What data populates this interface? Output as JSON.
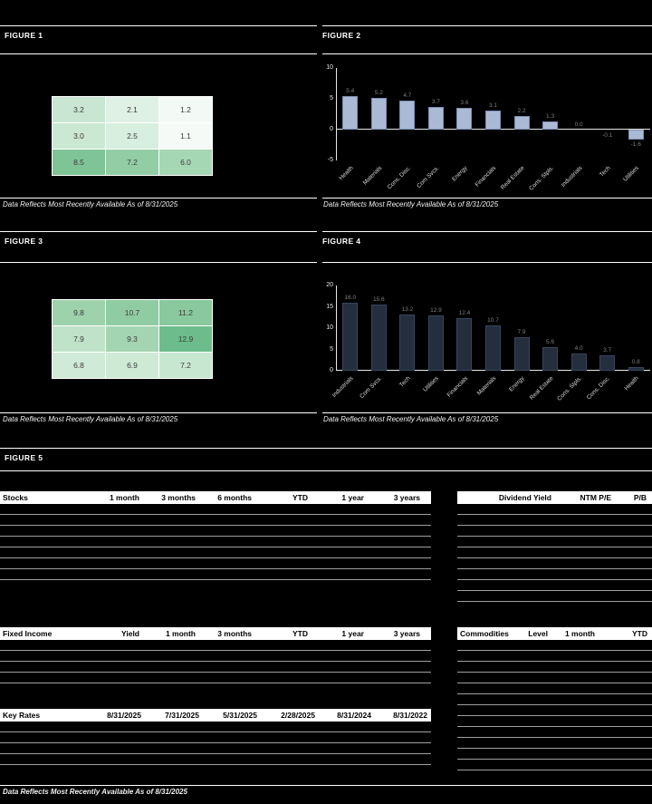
{
  "page": {
    "background": "#000000"
  },
  "figures": {
    "figure1": {
      "title": "FIGURE 1",
      "caption": "Data Reflects Most Recently Available As of 8/31/2025"
    },
    "figure2": {
      "title": "FIGURE 2",
      "caption": "Data Reflects Most Recently Available As of 8/31/2025"
    },
    "figure3": {
      "title": "FIGURE 3",
      "caption": "Data Reflects Most Recently Available As of 8/31/2025"
    },
    "figure4": {
      "title": "FIGURE 4",
      "caption": "Data Reflects Most Recently Available As of 8/31/2025"
    },
    "figure5": {
      "title": "FIGURE 5",
      "caption": "Data Reflects Most Recently Available As of 8/31/2025"
    }
  },
  "chart_data": [
    {
      "id": "figure1",
      "figure": "FIGURE 1",
      "type": "heatmap",
      "rows": [
        [
          3.2,
          2.1,
          1.2
        ],
        [
          3.0,
          2.5,
          1.1
        ],
        [
          8.5,
          7.2,
          6.0
        ]
      ],
      "cell_colors": [
        [
          "#c8e6d1",
          "#dff1e5",
          "#f3faf5"
        ],
        [
          "#cbe8d3",
          "#d8eede",
          "#f5faf6"
        ],
        [
          "#7fc497",
          "#92cda6",
          "#a6d7b5"
        ]
      ],
      "value_text_color": "#3c3c3c",
      "caption": "Data Reflects Most Recently Available As of 8/31/2025"
    },
    {
      "id": "figure2",
      "figure": "FIGURE 2",
      "type": "bar",
      "categories": [
        "Health",
        "Materials",
        "Cons. Disc.",
        "Com Svcs.",
        "Energy",
        "Financials",
        "Real Estate",
        "Cons. Stpls.",
        "Industrials",
        "Tech",
        "Utilities"
      ],
      "values": [
        5.4,
        5.2,
        4.7,
        3.7,
        3.6,
        3.1,
        2.2,
        1.3,
        0.0,
        -0.1,
        -1.6
      ],
      "ylim": [
        -5,
        10
      ],
      "yticks": [
        10,
        5,
        0,
        -5
      ],
      "grid": false,
      "bar_color": "#abbad4",
      "bar_edge_color": "#7d8fb4",
      "value_label_color": "#7f7f7f",
      "caption": "Data Reflects Most Recently Available As of 8/31/2025"
    },
    {
      "id": "figure3",
      "figure": "FIGURE 3",
      "type": "heatmap",
      "rows": [
        [
          9.8,
          10.7,
          11.2
        ],
        [
          7.9,
          9.3,
          12.9
        ],
        [
          6.8,
          6.9,
          7.2
        ]
      ],
      "cell_colors": [
        [
          "#9dd2ad",
          "#90cca3",
          "#89c99d"
        ],
        [
          "#bfe2c9",
          "#a4d5b2",
          "#6cbd8b"
        ],
        [
          "#cfead6",
          "#ceead5",
          "#c8e7d1"
        ]
      ],
      "value_text_color": "#3c3c3c",
      "caption": "Data Reflects Most Recently Available As of 8/31/2025"
    },
    {
      "id": "figure4",
      "figure": "FIGURE 4",
      "type": "bar",
      "categories": [
        "Industrials",
        "Com Svcs.",
        "Tech",
        "Utilities",
        "Financials",
        "Materials",
        "Energy",
        "Real Estate",
        "Cons. Stpls.",
        "Cons. Disc.",
        "Health"
      ],
      "values": [
        16.0,
        15.6,
        13.2,
        12.9,
        12.4,
        10.7,
        7.9,
        5.6,
        4.0,
        3.7,
        0.8
      ],
      "ylim": [
        0,
        20
      ],
      "yticks": [
        20,
        15,
        10,
        5,
        0
      ],
      "grid": false,
      "bar_color": "#242e3c",
      "bar_edge_color": "#39465c",
      "value_label_color": "#7f7f7f",
      "caption": "Data Reflects Most Recently Available As of 8/31/2025"
    },
    {
      "id": "stocks",
      "figure": "FIGURE 5",
      "type": "table",
      "label": "Stocks",
      "columns": [
        "1 month",
        "3 months",
        "6 months",
        "YTD",
        "1 year",
        "3 years"
      ],
      "row_count": 7
    },
    {
      "id": "valuation",
      "figure": "FIGURE 5",
      "type": "table",
      "label": "",
      "columns": [
        "Dividend Yield",
        "NTM P/E",
        "P/B"
      ],
      "row_count": 9
    },
    {
      "id": "fixed_income",
      "figure": "FIGURE 5",
      "type": "table",
      "label": "Fixed Income",
      "columns": [
        "Yield",
        "1 month",
        "3 months",
        "YTD",
        "1 year",
        "3 years"
      ],
      "row_count": 4
    },
    {
      "id": "commodities",
      "figure": "FIGURE 5",
      "type": "table",
      "label": "Commodities",
      "columns": [
        "Level",
        "1 month",
        "YTD"
      ],
      "row_count": 12
    },
    {
      "id": "key_rates",
      "figure": "FIGURE 5",
      "type": "table",
      "label": "Key Rates",
      "columns": [
        "8/31/2025",
        "7/31/2025",
        "5/31/2025",
        "2/28/2025",
        "8/31/2024",
        "8/31/2022"
      ],
      "row_count": 4
    }
  ],
  "footer": {
    "caption": "Data Reflects Most Recently Available As of 8/31/2025"
  }
}
